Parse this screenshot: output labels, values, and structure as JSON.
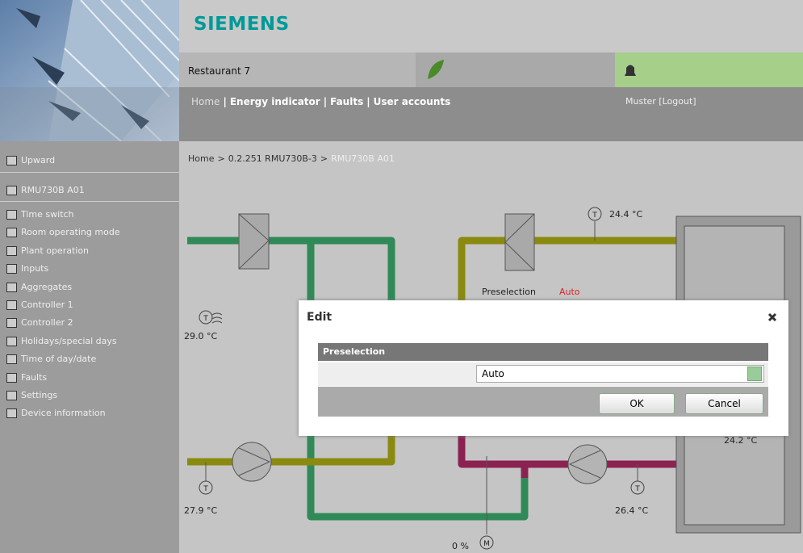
{
  "header": {
    "brand": "SIEMENS",
    "site": "Restaurant 7",
    "nav": {
      "home": "Home",
      "separator": "|",
      "links": [
        "Energy indicator",
        "Faults",
        "User accounts"
      ]
    },
    "user": "Muster",
    "logout": "[Logout]"
  },
  "sidebar": {
    "upward": "Upward",
    "device": "RMU730B A01",
    "menu": [
      "Time switch",
      "Room operating mode",
      "Plant operation",
      "Inputs",
      "Aggregates",
      "Controller 1",
      "Controller 2",
      "Holidays/special days",
      "Time of day/date",
      "Faults",
      "Settings",
      "Device information"
    ]
  },
  "breadcrumb": {
    "separator": ">",
    "items": [
      "Home",
      "0.2.251 RMU730B-3"
    ],
    "current": "RMU730B A01"
  },
  "diagram": {
    "sensor_letter": "T",
    "motor_letter": "M",
    "supply_temp": "24.4 °C",
    "outdoor_temp": "29.0 °C",
    "return_left_temp": "27.9 °C",
    "return_right_temp": "26.4 °C",
    "room_temp": "24.2 °C",
    "valve_position": "0 %",
    "preselection_label": "Preselection",
    "preselection_value": "Auto"
  },
  "dialog": {
    "title": "Edit",
    "section": "Preselection",
    "value": "Auto",
    "ok": "OK",
    "cancel": "Cancel"
  }
}
